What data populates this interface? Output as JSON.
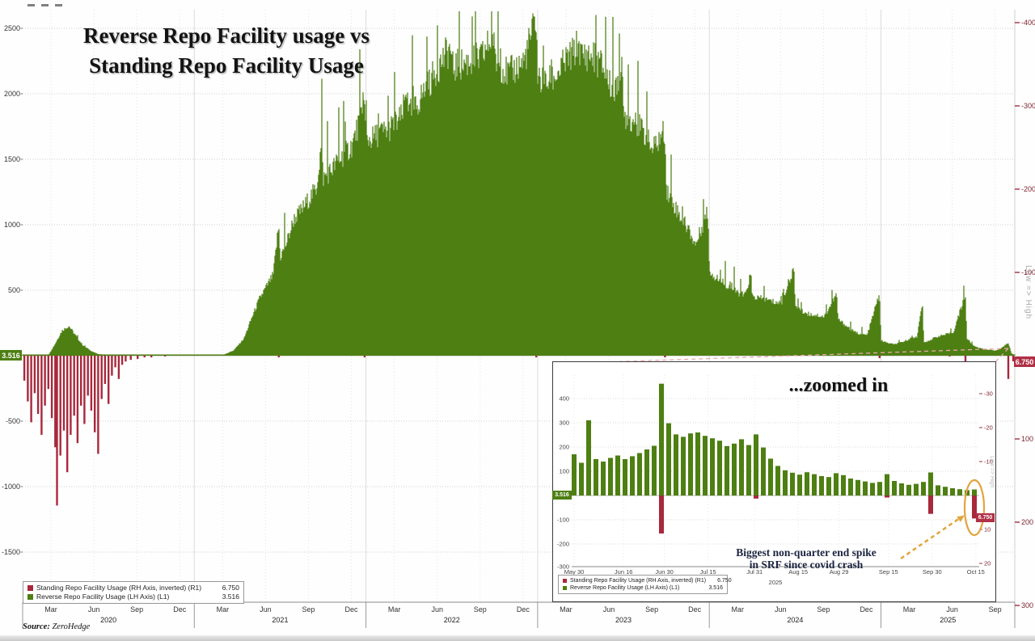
{
  "page": {
    "source_label": "Source:",
    "source_value": "ZeroHedge"
  },
  "title": {
    "line1": "Reverse Repo Facility usage vs",
    "line2": "Standing Repo Facility Usage"
  },
  "legend": {
    "items": [
      {
        "label": "Standing Repo Facility Usage (RH Axis, inverted) (R1)",
        "value": "6.750",
        "color_key": "red"
      },
      {
        "label": "Reverse Repo Facility Usage (LH Axis) (L1)",
        "value": "3.516",
        "color_key": "green"
      }
    ]
  },
  "annotation": {
    "line1": "Biggest non-quarter end spike",
    "line2": "in SRF since covid crash"
  },
  "colors": {
    "green": "#4d7f12",
    "red": "#a8283c",
    "red_box": "#b03045",
    "leader": "#eba6ad",
    "orange": "#e2a43f",
    "grid": "#cfcfcf",
    "axis_text": "#333333",
    "right_axis_text": "#7c2430"
  },
  "chart_data": [
    {
      "id": "main",
      "type": "area",
      "title": "Reverse Repo Facility usage vs Standing Repo Facility Usage",
      "left_axis": {
        "ticks": [
          2500,
          2000,
          1500,
          1000,
          500,
          -500,
          -1000,
          -1500
        ],
        "last_value_tag": "3.516"
      },
      "right_axis": {
        "ticks": [
          -400,
          -300,
          -200,
          -100,
          100,
          200,
          300
        ],
        "label": "Low => High",
        "inverted": true,
        "last_value_tag": "6.750"
      },
      "x_axis": {
        "years": [
          2020,
          2021,
          2022,
          2023,
          2024,
          2025
        ],
        "quarter_labels": [
          "Mar",
          "Jun",
          "Sep",
          "Dec"
        ],
        "last_year_quarters": [
          "Mar",
          "Jun",
          "Sep"
        ],
        "month_offsets": {
          "Mar": 0.165,
          "Jun": 0.415,
          "Sep": 0.665,
          "Dec": 0.915
        }
      },
      "series": [
        {
          "name": "Reverse Repo Facility Usage (LH Axis) (L1)",
          "axis": "left",
          "color": "#4d7f12",
          "last": 3.516,
          "t": [
            2020.0,
            2020.08,
            2020.15,
            2020.19,
            2020.23,
            2020.27,
            2020.31,
            2020.35,
            2020.4,
            2020.44,
            2020.5,
            2020.58,
            2020.67,
            2020.75,
            2020.83,
            2020.92,
            2021.0,
            2021.08,
            2021.17,
            2021.23,
            2021.29,
            2021.33,
            2021.38,
            2021.42,
            2021.46,
            2021.492,
            2021.5,
            2021.54,
            2021.58,
            2021.63,
            2021.67,
            2021.71,
            2021.742,
            2021.75,
            2021.79,
            2021.83,
            2021.88,
            2021.92,
            2021.992,
            2022.0,
            2022.04,
            2022.08,
            2022.13,
            2022.17,
            2022.21,
            2022.242,
            2022.25,
            2022.29,
            2022.33,
            2022.38,
            2022.42,
            2022.492,
            2022.5,
            2022.54,
            2022.58,
            2022.63,
            2022.67,
            2022.742,
            2022.75,
            2022.79,
            2022.83,
            2022.88,
            2022.92,
            2022.992,
            2023.0,
            2023.04,
            2023.08,
            2023.13,
            2023.17,
            2023.21,
            2023.242,
            2023.25,
            2023.29,
            2023.33,
            2023.38,
            2023.42,
            2023.46,
            2023.492,
            2023.5,
            2023.54,
            2023.58,
            2023.63,
            2023.67,
            2023.742,
            2023.75,
            2023.79,
            2023.83,
            2023.88,
            2023.92,
            2023.992,
            2024.0,
            2024.04,
            2024.08,
            2024.13,
            2024.17,
            2024.21,
            2024.242,
            2024.25,
            2024.29,
            2024.33,
            2024.38,
            2024.42,
            2024.492,
            2024.5,
            2024.54,
            2024.58,
            2024.63,
            2024.67,
            2024.742,
            2024.75,
            2024.79,
            2024.83,
            2024.88,
            2024.92,
            2024.992,
            2025.0,
            2025.04,
            2025.08,
            2025.13,
            2025.17,
            2025.21,
            2025.242,
            2025.25,
            2025.29,
            2025.33,
            2025.38,
            2025.42,
            2025.492,
            2025.5,
            2025.54,
            2025.58,
            2025.63,
            2025.67,
            2025.7,
            2025.742,
            2025.76,
            2025.78
          ],
          "v": [
            2,
            2,
            3,
            90,
            190,
            225,
            150,
            80,
            35,
            12,
            6,
            4,
            3,
            3,
            2,
            2,
            2,
            2,
            6,
            40,
            130,
            270,
            430,
            520,
            610,
            991,
            740,
            860,
            1030,
            1110,
            1190,
            1260,
            1604,
            1340,
            1390,
            1460,
            1530,
            1590,
            1905,
            1630,
            1645,
            1685,
            1705,
            1755,
            1805,
            2045,
            1825,
            1875,
            1985,
            2085,
            2185,
            2330,
            2175,
            2195,
            2215,
            2235,
            2245,
            2425,
            2235,
            2185,
            2125,
            2185,
            2225,
            2553,
            2105,
            2055,
            2085,
            2155,
            2235,
            2285,
            2375,
            2265,
            2275,
            2255,
            2185,
            2055,
            1985,
            2150,
            1825,
            1785,
            1755,
            1655,
            1555,
            1705,
            1255,
            1155,
            1055,
            955,
            835,
            1100,
            645,
            585,
            555,
            505,
            475,
            455,
            625,
            445,
            435,
            425,
            405,
            395,
            665,
            385,
            335,
            315,
            305,
            295,
            465,
            275,
            235,
            185,
            165,
            155,
            473,
            115,
            95,
            85,
            105,
            130,
            140,
            400,
            95,
            120,
            145,
            160,
            170,
            461,
            130,
            75,
            55,
            45,
            38,
            58,
            96,
            18,
            3.5
          ]
        },
        {
          "name": "Standing Repo Facility Usage (RH Axis, inverted) (R1)",
          "axis": "right",
          "color": "#a8283c",
          "last": 6.75,
          "t": [
            2020.01,
            2020.03,
            2020.05,
            2020.07,
            2020.09,
            2020.11,
            2020.13,
            2020.15,
            2020.17,
            2020.19,
            2020.2,
            2020.22,
            2020.24,
            2020.26,
            2020.28,
            2020.3,
            2020.32,
            2020.34,
            2020.36,
            2020.38,
            2020.4,
            2020.42,
            2020.44,
            2020.46,
            2020.48,
            2020.5,
            2020.52,
            2020.54,
            2020.56,
            2020.58,
            2020.6,
            2020.63,
            2020.67,
            2020.71,
            2020.75,
            2020.83,
            2021.492,
            2021.992,
            2022.992,
            2023.742,
            2024.992,
            2025.4,
            2025.492,
            2025.742,
            2025.77
          ],
          "v": [
            30,
            55,
            80,
            45,
            70,
            95,
            60,
            40,
            75,
            110,
            180,
            120,
            90,
            140,
            95,
            72,
            105,
            60,
            82,
            48,
            66,
            92,
            118,
            52,
            34,
            58,
            24,
            14,
            28,
            11,
            7,
            5,
            4,
            2,
            2,
            1,
            2,
            2,
            2,
            2,
            3,
            1,
            225,
            28,
            6.75
          ]
        }
      ]
    },
    {
      "id": "inset",
      "type": "bar",
      "title": "...zoomed in",
      "year_label": "2025",
      "left_axis": {
        "ticks": [
          400,
          300,
          200,
          100,
          -100,
          -200,
          -300
        ],
        "last_value_tag": "3.516"
      },
      "right_axis": {
        "ticks": [
          -30,
          -20,
          -10,
          10,
          20
        ],
        "label": "Low => High",
        "inverted": true,
        "last_value_tag": "6.750"
      },
      "x_ticks": [
        {
          "label": "May 30",
          "pos": 0
        },
        {
          "label": "Jun 16",
          "pos": 6.8
        },
        {
          "label": "Jun 30",
          "pos": 12.4
        },
        {
          "label": "Jul 15",
          "pos": 18.4
        },
        {
          "label": "Jul 31",
          "pos": 24.8
        },
        {
          "label": "Aug 15",
          "pos": 30.8
        },
        {
          "label": "Aug 29",
          "pos": 36.4
        },
        {
          "label": "Sep 15",
          "pos": 43.2
        },
        {
          "label": "Sep 30",
          "pos": 49.2
        },
        {
          "label": "Oct 15",
          "pos": 55.2
        }
      ],
      "green_values": [
        170,
        135,
        310,
        150,
        140,
        155,
        165,
        150,
        162,
        175,
        190,
        205,
        461,
        298,
        252,
        242,
        256,
        260,
        246,
        236,
        226,
        204,
        214,
        232,
        208,
        252,
        198,
        152,
        122,
        104,
        94,
        86,
        96,
        88,
        80,
        76,
        92,
        84,
        70,
        64,
        58,
        52,
        56,
        88,
        60,
        50,
        44,
        48,
        56,
        95,
        42,
        36,
        30,
        26,
        22,
        25
      ],
      "red_bars": [
        {
          "pos": 12,
          "v": 11.2
        },
        {
          "pos": 25,
          "v": 0.9
        },
        {
          "pos": 43,
          "v": 0.6
        },
        {
          "pos": 49,
          "v": 5.4
        },
        {
          "pos": 55,
          "v": 6.75
        }
      ]
    }
  ]
}
